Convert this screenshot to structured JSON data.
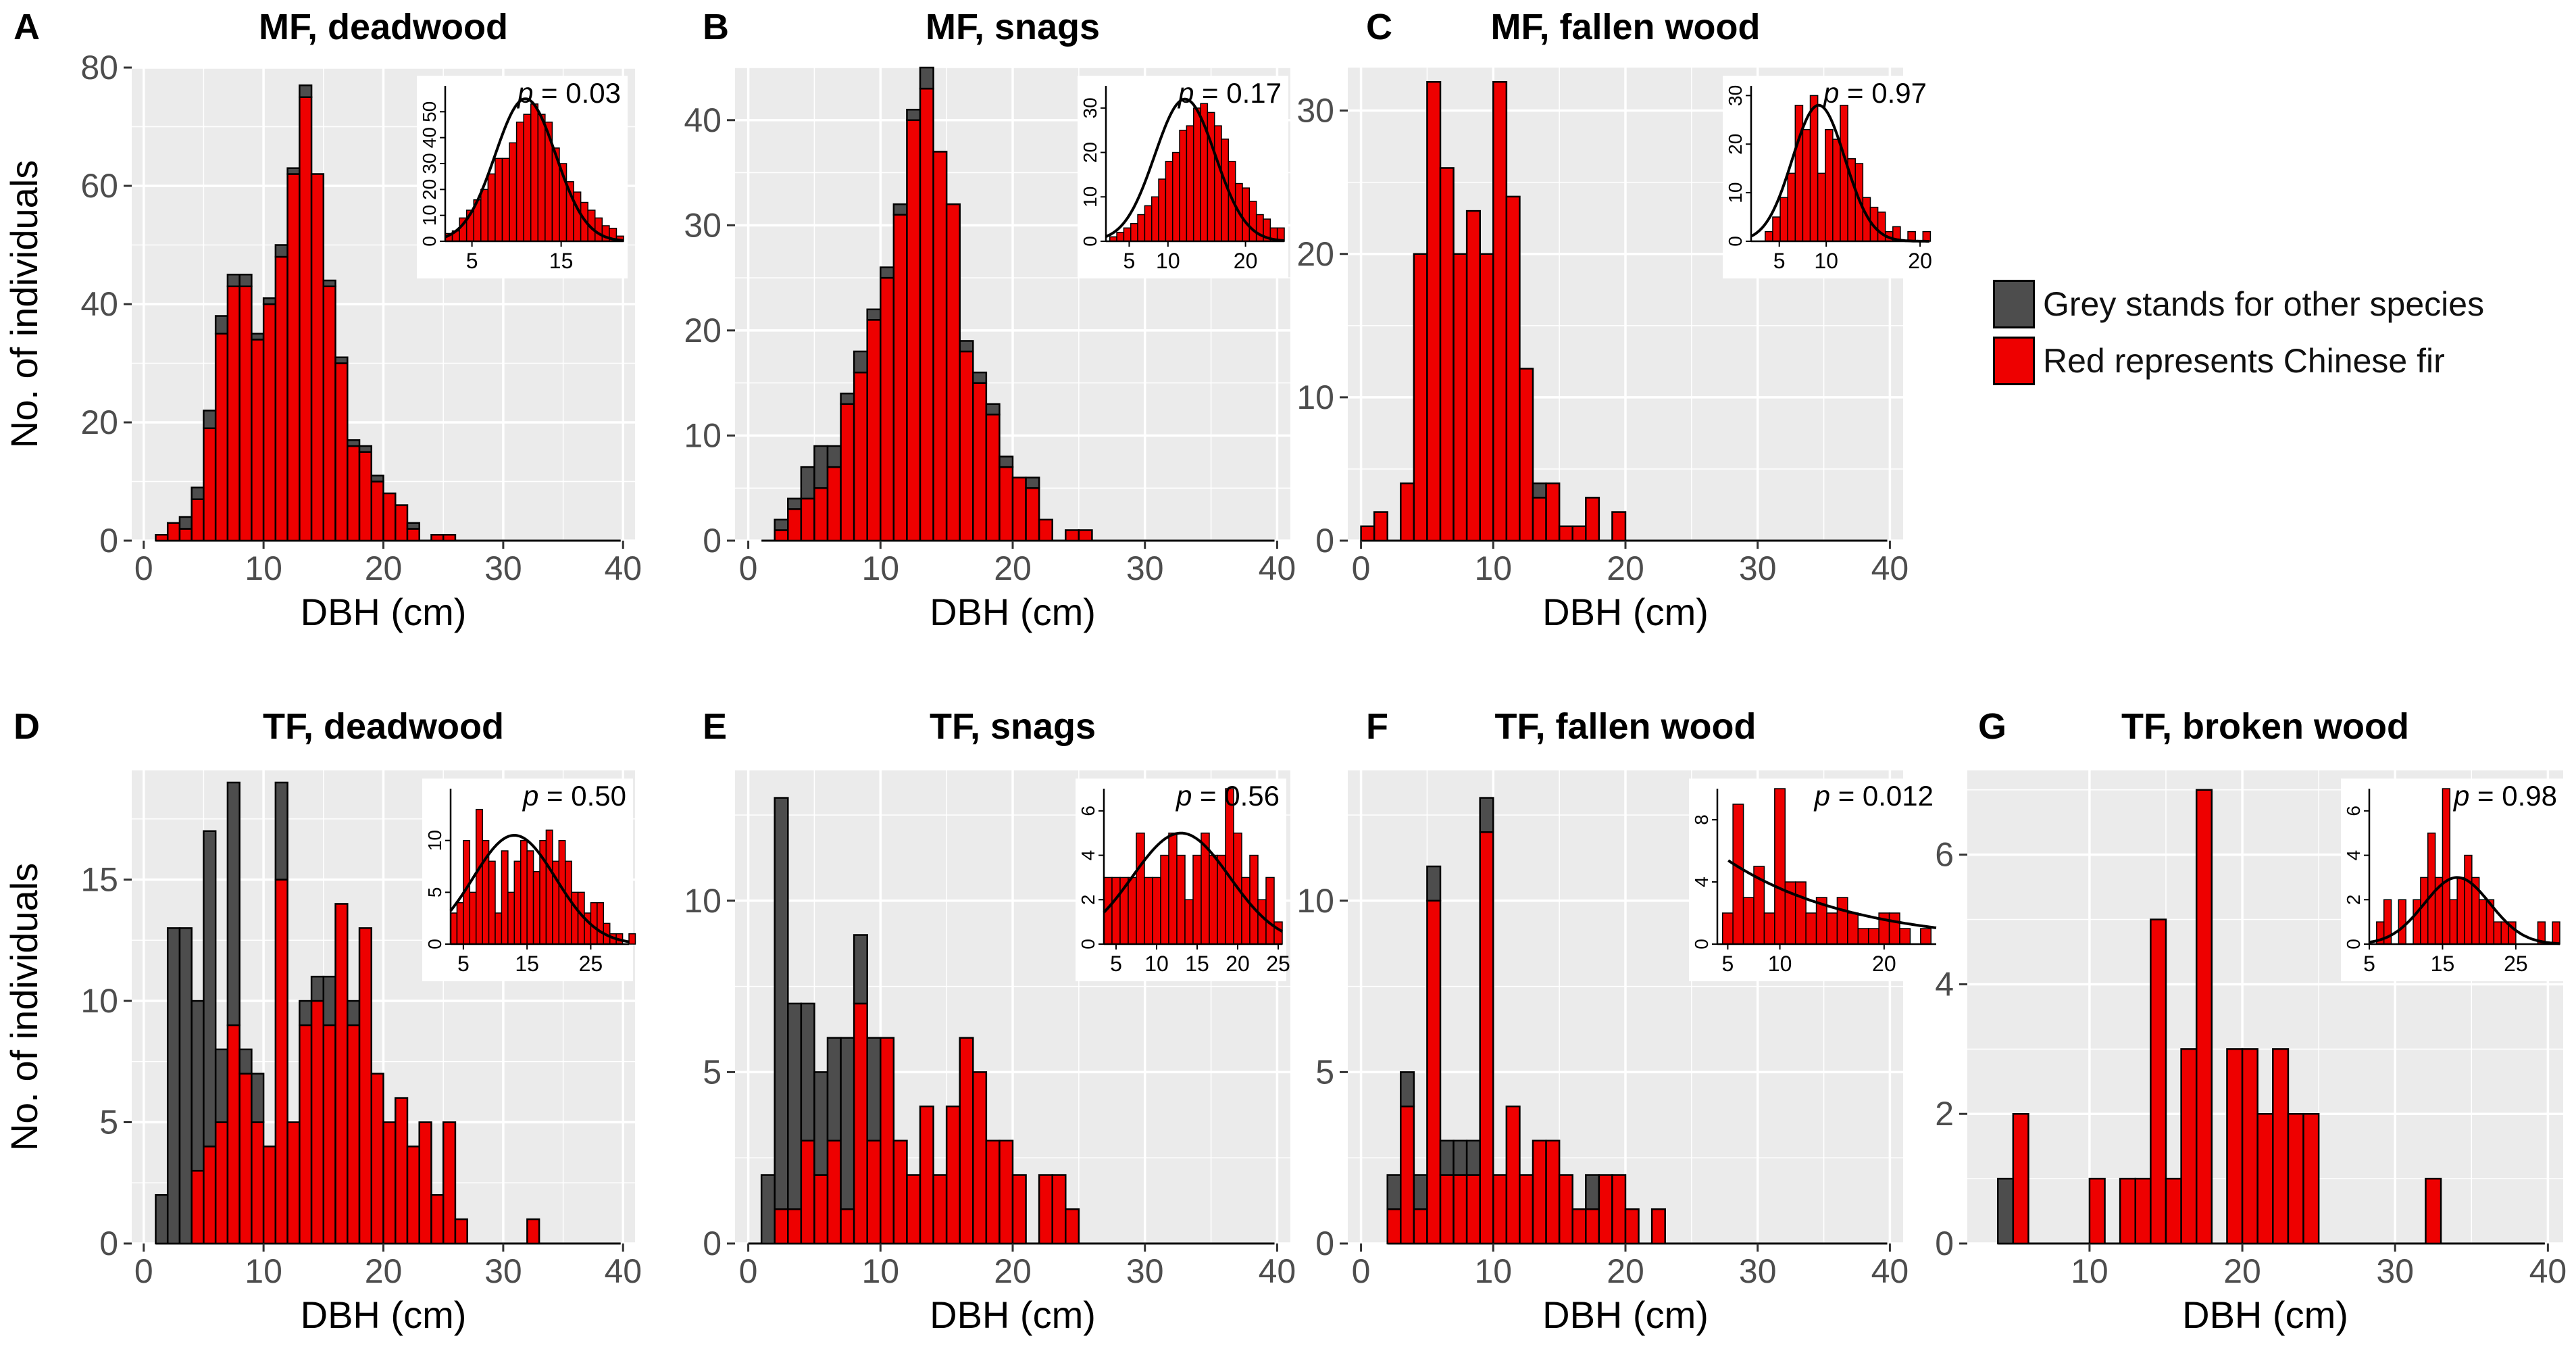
{
  "colors": {
    "other": "#4d4d4d",
    "fir": "#ee0000",
    "panel": "#ebebeb",
    "grid": "#ffffff",
    "axis_text": "#4d4d4d"
  },
  "legend": {
    "items": [
      {
        "label": "Grey stands for other species",
        "color": "#4d4d4d"
      },
      {
        "label": "Red represents Chinese fir",
        "color": "#ee0000"
      }
    ]
  },
  "chart_data": [
    {
      "type": "bar",
      "id": "A",
      "letter": "A",
      "title": "MF, deadwood",
      "xlabel": "DBH (cm)",
      "ylabel": "No. of individuals",
      "xlim": [
        -1,
        41
      ],
      "ylim": [
        0,
        80
      ],
      "xticks": [
        0,
        10,
        20,
        30,
        40
      ],
      "yticks": [
        0,
        20,
        40,
        60,
        80
      ],
      "bar_start": 1,
      "bar_width": 1,
      "stacked": true,
      "series": [
        {
          "name": "Chinese fir",
          "values": [
            1,
            3,
            2,
            7,
            19,
            35,
            43,
            43,
            34,
            40,
            48,
            62,
            75,
            62,
            43,
            30,
            16,
            15,
            10,
            8,
            6,
            2,
            0,
            1,
            1,
            0
          ]
        },
        {
          "name": "Other species",
          "values": [
            0,
            0,
            2,
            2,
            3,
            3,
            2,
            2,
            1,
            1,
            2,
            1,
            2,
            0,
            1,
            1,
            1,
            1,
            1,
            0,
            0,
            1,
            0,
            0,
            0,
            0
          ]
        }
      ],
      "inset": {
        "p_label": "p",
        "p_value": "= 0.03",
        "xlim": [
          2,
          22
        ],
        "ylim": [
          0,
          60
        ],
        "xticks": [
          5,
          15
        ],
        "yticks": [
          0,
          10,
          20,
          30,
          40,
          50
        ],
        "bins_start": 2,
        "bin_width": 0.8,
        "values": [
          3,
          4,
          9,
          12,
          16,
          20,
          26,
          32,
          32,
          38,
          46,
          49,
          53,
          49,
          46,
          36,
          30,
          23,
          19,
          15,
          12,
          9,
          6,
          5,
          2
        ],
        "curve_mean": 11.0,
        "curve_sd": 3.4,
        "curve_peak": 55
      }
    },
    {
      "type": "bar",
      "id": "B",
      "letter": "B",
      "title": "MF, snags",
      "xlabel": "DBH (cm)",
      "ylabel": "",
      "xlim": [
        -1,
        41
      ],
      "ylim": [
        0,
        45
      ],
      "xticks": [
        0,
        10,
        20,
        30,
        40
      ],
      "yticks": [
        0,
        10,
        20,
        30,
        40
      ],
      "bar_start": 1,
      "bar_width": 1,
      "stacked": true,
      "series": [
        {
          "name": "Chinese fir",
          "values": [
            0,
            1,
            3,
            4,
            5,
            7,
            13,
            16,
            21,
            25,
            31,
            40,
            43,
            37,
            32,
            18,
            15,
            12,
            7,
            6,
            5,
            2,
            0,
            1,
            1,
            0
          ]
        },
        {
          "name": "Other species",
          "values": [
            0,
            1,
            1,
            3,
            4,
            2,
            1,
            2,
            1,
            1,
            1,
            1,
            2,
            0,
            0,
            1,
            1,
            1,
            1,
            0,
            1,
            0,
            0,
            0,
            0,
            0
          ]
        }
      ],
      "inset": {
        "p_label": "p",
        "p_value": "= 0.17",
        "xlim": [
          2,
          25
        ],
        "ylim": [
          0,
          35
        ],
        "xticks": [
          5,
          10,
          20
        ],
        "yticks": [
          0,
          10,
          20,
          30
        ],
        "bins_start": 2.5,
        "bin_width": 0.9,
        "values": [
          1,
          2,
          3,
          4,
          6,
          8,
          10,
          14,
          18,
          20,
          25,
          26,
          30,
          31,
          29,
          26,
          23,
          18,
          13,
          12,
          9,
          6,
          5,
          3,
          3
        ],
        "curve_mean": 12.2,
        "curve_sd": 3.9,
        "curve_peak": 32
      }
    },
    {
      "type": "bar",
      "id": "C",
      "letter": "C",
      "title": "MF, fallen wood",
      "xlabel": "DBH (cm)",
      "ylabel": "",
      "xlim": [
        -1,
        41
      ],
      "ylim": [
        0,
        33
      ],
      "xticks": [
        0,
        10,
        20,
        30,
        40
      ],
      "yticks": [
        0,
        10,
        20,
        30
      ],
      "bar_start": 0,
      "bar_width": 1,
      "stacked": true,
      "series": [
        {
          "name": "Chinese fir",
          "values": [
            1,
            2,
            0,
            4,
            20,
            32,
            26,
            20,
            23,
            20,
            32,
            24,
            12,
            3,
            4,
            1,
            1,
            3,
            0,
            2,
            0
          ]
        },
        {
          "name": "Other species",
          "values": [
            0,
            0,
            0,
            0,
            0,
            0,
            0,
            0,
            0,
            0,
            0,
            0,
            0,
            1,
            0,
            0,
            0,
            0,
            0,
            0,
            0
          ]
        }
      ],
      "inset": {
        "p_label": "p",
        "p_value": "= 0.97",
        "xlim": [
          2,
          21
        ],
        "ylim": [
          0,
          32
        ],
        "xticks": [
          5,
          10,
          20
        ],
        "yticks": [
          0,
          10,
          20,
          30
        ],
        "bins_start": 3.5,
        "bin_width": 0.8,
        "values": [
          2,
          5,
          9,
          14,
          28,
          23,
          30,
          14,
          23,
          21,
          28,
          17,
          16,
          9,
          7,
          6,
          2,
          3,
          0,
          2,
          0,
          2
        ],
        "curve_mean": 9.2,
        "curve_sd": 2.8,
        "curve_peak": 28
      }
    },
    {
      "type": "bar",
      "id": "D",
      "letter": "D",
      "title": "TF, deadwood",
      "xlabel": "DBH (cm)",
      "ylabel": "No. of individuals",
      "xlim": [
        -1,
        41
      ],
      "ylim": [
        0,
        19.5
      ],
      "xticks": [
        0,
        10,
        20,
        30,
        40
      ],
      "yticks": [
        0,
        5,
        10,
        15
      ],
      "bar_start": 1,
      "bar_width": 1,
      "stacked": true,
      "series": [
        {
          "name": "Chinese fir",
          "values": [
            0,
            0,
            0,
            3,
            4,
            5,
            9,
            7,
            5,
            4,
            15,
            5,
            9,
            10,
            9,
            14,
            9,
            13,
            7,
            5,
            6,
            4,
            5,
            2,
            5,
            1,
            0,
            0,
            0,
            0,
            0,
            1
          ]
        },
        {
          "name": "Other species",
          "values": [
            2,
            13,
            13,
            7,
            13,
            3,
            10,
            1,
            2,
            0,
            4,
            0,
            1,
            1,
            2,
            0,
            1,
            0,
            0,
            0,
            0,
            0,
            0,
            0,
            0,
            0,
            0,
            0,
            0,
            0,
            0,
            0
          ]
        }
      ],
      "inset": {
        "p_label": "p",
        "p_value": "= 0.50",
        "xlim": [
          3,
          31
        ],
        "ylim": [
          0,
          15
        ],
        "xticks": [
          5,
          15,
          25
        ],
        "yticks": [
          0,
          5,
          10
        ],
        "bins_start": 3,
        "bin_width": 1,
        "values": [
          3,
          4,
          10,
          5,
          13,
          10,
          8,
          3,
          9,
          5,
          8,
          10,
          9,
          7,
          10,
          11,
          8,
          10,
          8,
          5,
          5,
          3,
          4,
          4,
          2,
          1,
          1,
          0,
          1
        ],
        "curve_mean": 13.0,
        "curve_sd": 6.5,
        "curve_peak": 10.5
      }
    },
    {
      "type": "bar",
      "id": "E",
      "letter": "E",
      "title": "TF, snags",
      "xlabel": "DBH (cm)",
      "ylabel": "",
      "xlim": [
        -1,
        41
      ],
      "ylim": [
        0,
        13.8
      ],
      "xticks": [
        0,
        10,
        20,
        30,
        40
      ],
      "yticks": [
        0,
        5,
        10
      ],
      "bar_start": 0,
      "bar_width": 1,
      "stacked": true,
      "series": [
        {
          "name": "Chinese fir",
          "values": [
            0,
            0,
            1,
            1,
            3,
            2,
            3,
            1,
            7,
            3,
            6,
            3,
            2,
            4,
            2,
            4,
            6,
            5,
            3,
            3,
            2,
            0,
            2,
            2,
            1,
            0
          ]
        },
        {
          "name": "Other species",
          "values": [
            0,
            2,
            12,
            6,
            4,
            3,
            3,
            5,
            2,
            3,
            0,
            0,
            0,
            0,
            0,
            0,
            0,
            0,
            0,
            0,
            0,
            0,
            0,
            0,
            0,
            0
          ]
        }
      ],
      "inset": {
        "p_label": "p",
        "p_value": "= 0.56",
        "xlim": [
          3.5,
          25.5
        ],
        "ylim": [
          0,
          7
        ],
        "xticks": [
          5,
          10,
          15,
          20,
          25
        ],
        "yticks": [
          0,
          2,
          4,
          6
        ],
        "bins_start": 3.5,
        "bin_width": 1,
        "values": [
          3,
          3,
          3,
          3,
          5,
          3,
          3,
          4,
          5,
          4,
          2,
          4,
          5,
          4,
          4,
          7,
          5,
          3,
          4,
          2,
          3,
          1
        ],
        "curve_mean": 13.0,
        "curve_sd": 6.0,
        "curve_peak": 5
      }
    },
    {
      "type": "bar",
      "id": "F",
      "letter": "F",
      "title": "TF, fallen wood",
      "xlabel": "DBH (cm)",
      "ylabel": "",
      "xlim": [
        -1,
        41
      ],
      "ylim": [
        0,
        13.8
      ],
      "xticks": [
        0,
        10,
        20,
        30,
        40
      ],
      "yticks": [
        0,
        5,
        10
      ],
      "bar_start": 2,
      "bar_width": 1,
      "stacked": true,
      "series": [
        {
          "name": "Chinese fir",
          "values": [
            1,
            4,
            1,
            10,
            2,
            2,
            2,
            12,
            2,
            4,
            2,
            3,
            3,
            2,
            1,
            1,
            2,
            2,
            1,
            0,
            1
          ]
        },
        {
          "name": "Other species",
          "values": [
            1,
            1,
            1,
            1,
            1,
            1,
            1,
            1,
            0,
            0,
            0,
            0,
            0,
            0,
            0,
            1,
            0,
            0,
            0,
            0,
            0
          ]
        }
      ],
      "inset": {
        "p_label": "p",
        "p_value": "= 0.012",
        "xlim": [
          4,
          25
        ],
        "ylim": [
          0,
          10
        ],
        "xticks": [
          5,
          10,
          20
        ],
        "yticks": [
          0,
          4,
          8
        ],
        "bins_start": 4.5,
        "bin_width": 1,
        "values": [
          2,
          9,
          3,
          5,
          2,
          10,
          4,
          4,
          2,
          3,
          2,
          3,
          2,
          1,
          1,
          2,
          2,
          1,
          0,
          1
        ],
        "curve_type": "exp",
        "curve_a": 5.4,
        "curve_k": 0.082,
        "curve_x0": 5
      }
    },
    {
      "type": "bar",
      "id": "G",
      "letter": "G",
      "title": "TF, broken wood",
      "xlabel": "DBH (cm)",
      "ylabel": "",
      "xlim": [
        2,
        41
      ],
      "ylim": [
        0,
        7.3
      ],
      "xticks": [
        10,
        20,
        30,
        40
      ],
      "yticks": [
        0,
        2,
        4,
        6
      ],
      "bar_start": 4,
      "bar_width": 1,
      "stacked": true,
      "series": [
        {
          "name": "Chinese fir",
          "values": [
            0,
            2,
            0,
            0,
            0,
            0,
            1,
            0,
            1,
            1,
            5,
            1,
            3,
            7,
            0,
            3,
            3,
            2,
            3,
            2,
            2,
            0,
            0,
            0,
            0,
            0,
            0,
            0,
            1
          ]
        },
        {
          "name": "Other species",
          "values": [
            1,
            0,
            0,
            0,
            0,
            0,
            0,
            0,
            0,
            0,
            0,
            0,
            0,
            0,
            0,
            0,
            0,
            0,
            0,
            0,
            0,
            0,
            0,
            0,
            0,
            0,
            0,
            0,
            0
          ]
        }
      ],
      "inset": {
        "p_label": "p",
        "p_value": "= 0.98",
        "xlim": [
          5,
          31
        ],
        "ylim": [
          0,
          7
        ],
        "xticks": [
          5,
          15,
          25
        ],
        "yticks": [
          0,
          2,
          4,
          6
        ],
        "bins_start": 5,
        "bin_width": 1,
        "values": [
          0,
          1,
          2,
          0,
          2,
          0,
          2,
          3,
          5,
          3,
          7,
          2,
          3,
          4,
          3,
          2,
          2,
          1,
          1,
          1,
          0,
          0,
          0,
          1,
          0,
          1
        ],
        "curve_mean": 17.0,
        "curve_sd": 4.5,
        "curve_peak": 3
      }
    }
  ]
}
